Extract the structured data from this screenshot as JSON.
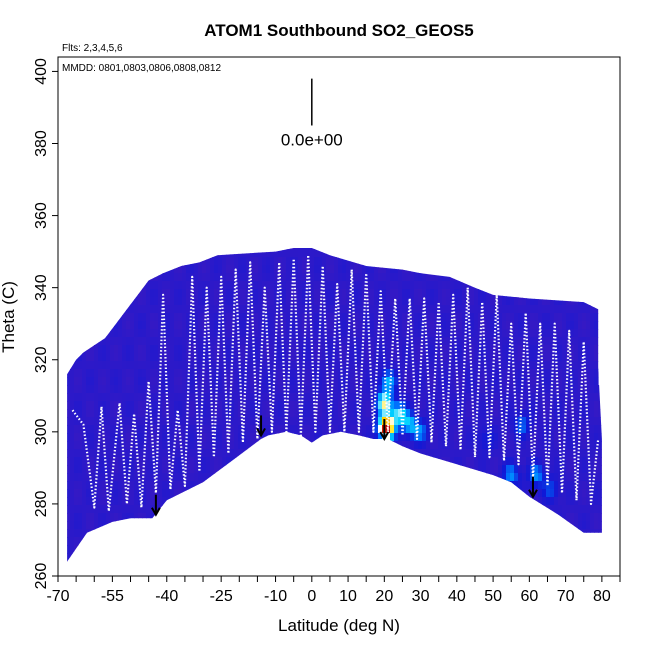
{
  "chart_data": {
    "type": "heatmap",
    "title": "ATOM1 Southbound SO2_GEOS5",
    "xlabel": "Latitude (deg N)",
    "ylabel": "Theta (C)",
    "flights_note": "Flts: 2,3,4,5,6",
    "dates_note": "MMDD: 0801,0803,0806,0808,0812",
    "scale_label": "0.0e+00",
    "xlim": [
      -70,
      85
    ],
    "ylim": [
      260,
      404
    ],
    "x_ticks": [
      -70,
      -55,
      -40,
      -25,
      -10,
      0,
      10,
      20,
      30,
      40,
      50,
      60,
      70,
      80
    ],
    "x_tick_labels": [
      "-70",
      "-55",
      "-40",
      "-25",
      "-10",
      "0",
      "10",
      "20",
      "30",
      "40",
      "50",
      "60",
      "70",
      "80"
    ],
    "x_minor_ticks": [
      -65,
      -60,
      -50,
      -45,
      -35,
      -30,
      -20,
      -15,
      -5,
      5,
      15,
      25,
      35,
      45,
      55,
      65,
      75,
      85
    ],
    "y_ticks": [
      260,
      280,
      300,
      320,
      340,
      360,
      380,
      400
    ],
    "y_tick_labels": [
      "260",
      "280",
      "300",
      "320",
      "340",
      "360",
      "380",
      "400"
    ],
    "top_profile": [
      [
        -67.5,
        316
      ],
      [
        -65,
        320
      ],
      [
        -63,
        322
      ],
      [
        -60,
        324
      ],
      [
        -57,
        326
      ],
      [
        -54,
        330
      ],
      [
        -51,
        334
      ],
      [
        -48,
        338
      ],
      [
        -45,
        342
      ],
      [
        -41,
        344
      ],
      [
        -36,
        346
      ],
      [
        -31,
        347
      ],
      [
        -26,
        349
      ],
      [
        -10,
        350
      ],
      [
        -5,
        351
      ],
      [
        0,
        351
      ],
      [
        5,
        349
      ],
      [
        15,
        346
      ],
      [
        25,
        345
      ],
      [
        30,
        344
      ],
      [
        38,
        343
      ],
      [
        45,
        340
      ],
      [
        50,
        338
      ],
      [
        60,
        337
      ],
      [
        75,
        336
      ],
      [
        79,
        334
      ],
      [
        79,
        318
      ],
      [
        80,
        298
      ]
    ],
    "floor_profile": [
      [
        -67.5,
        264
      ],
      [
        -62,
        272
      ],
      [
        -55,
        275
      ],
      [
        -50,
        276
      ],
      [
        -44,
        276
      ],
      [
        -40,
        281
      ],
      [
        -30,
        286
      ],
      [
        -22,
        292
      ],
      [
        -14,
        298
      ],
      [
        -12,
        299
      ],
      [
        -7,
        300
      ],
      [
        -3,
        299
      ],
      [
        0,
        297
      ],
      [
        3,
        299
      ],
      [
        8,
        300
      ],
      [
        13,
        299
      ],
      [
        17,
        298
      ],
      [
        21,
        298
      ],
      [
        25,
        296
      ],
      [
        30,
        294
      ],
      [
        40,
        291
      ],
      [
        50,
        288
      ],
      [
        55,
        286
      ],
      [
        60,
        282
      ],
      [
        68,
        277
      ],
      [
        75,
        272
      ],
      [
        80,
        272
      ],
      [
        80,
        294
      ]
    ],
    "hotspots": [
      {
        "lat": 20.5,
        "theta": 301,
        "value": 1.0
      },
      {
        "lat": 20,
        "theta": 308,
        "value": 0.55
      },
      {
        "lat": 21,
        "theta": 314,
        "value": 0.35
      },
      {
        "lat": 24,
        "theta": 305,
        "value": 0.45
      },
      {
        "lat": 27,
        "theta": 302,
        "value": 0.35
      },
      {
        "lat": 30,
        "theta": 300,
        "value": 0.25
      },
      {
        "lat": 58,
        "theta": 302,
        "value": 0.25
      },
      {
        "lat": 55,
        "theta": 288,
        "value": 0.3
      },
      {
        "lat": 62,
        "theta": 288,
        "value": 0.3
      },
      {
        "lat": 66,
        "theta": 284,
        "value": 0.2
      },
      {
        "lat": 48,
        "theta": 298,
        "value": 0.15
      }
    ],
    "flight_track": [
      [
        -66,
        306
      ],
      [
        -63,
        302
      ],
      [
        -60,
        279
      ],
      [
        -58,
        307
      ],
      [
        -56,
        278
      ],
      [
        -53,
        308
      ],
      [
        -51,
        280
      ],
      [
        -49,
        305
      ],
      [
        -47,
        279
      ],
      [
        -45,
        314
      ],
      [
        -43,
        283
      ],
      [
        -41,
        338
      ],
      [
        -39,
        284
      ],
      [
        -37,
        306
      ],
      [
        -35,
        285
      ],
      [
        -33,
        343
      ],
      [
        -31,
        289
      ],
      [
        -29,
        340
      ],
      [
        -27,
        293
      ],
      [
        -25,
        343
      ],
      [
        -23,
        294
      ],
      [
        -21,
        345
      ],
      [
        -19,
        297
      ],
      [
        -17,
        347
      ],
      [
        -15,
        298
      ],
      [
        -13,
        340
      ],
      [
        -11,
        300
      ],
      [
        -9,
        347
      ],
      [
        -7,
        300
      ],
      [
        -5,
        348
      ],
      [
        -3,
        299
      ],
      [
        -1,
        349
      ],
      [
        1,
        300
      ],
      [
        3,
        346
      ],
      [
        5,
        300
      ],
      [
        7,
        341
      ],
      [
        9,
        300
      ],
      [
        11,
        345
      ],
      [
        13,
        300
      ],
      [
        15,
        344
      ],
      [
        17,
        300
      ],
      [
        19,
        339
      ],
      [
        21,
        300
      ],
      [
        23,
        337
      ],
      [
        25,
        299
      ],
      [
        27,
        337
      ],
      [
        29,
        298
      ],
      [
        31,
        337
      ],
      [
        33,
        297
      ],
      [
        35,
        336
      ],
      [
        37,
        296
      ],
      [
        39,
        338
      ],
      [
        41,
        295
      ],
      [
        43,
        340
      ],
      [
        45,
        293
      ],
      [
        47,
        336
      ],
      [
        49,
        293
      ],
      [
        51,
        338
      ],
      [
        53,
        292
      ],
      [
        55,
        330
      ],
      [
        57,
        291
      ],
      [
        59,
        333
      ],
      [
        61,
        287
      ],
      [
        63,
        330
      ],
      [
        65,
        285
      ],
      [
        67,
        330
      ],
      [
        69,
        283
      ],
      [
        71,
        328
      ],
      [
        73,
        281
      ],
      [
        75,
        325
      ],
      [
        77,
        280
      ],
      [
        79,
        298
      ]
    ],
    "arrows": [
      [
        -43,
        277
      ],
      [
        -14,
        299
      ],
      [
        20,
        298
      ],
      [
        61,
        282
      ]
    ],
    "scale_bar": {
      "x": 0,
      "theta_top": 398,
      "theta_bottom": 385
    }
  }
}
